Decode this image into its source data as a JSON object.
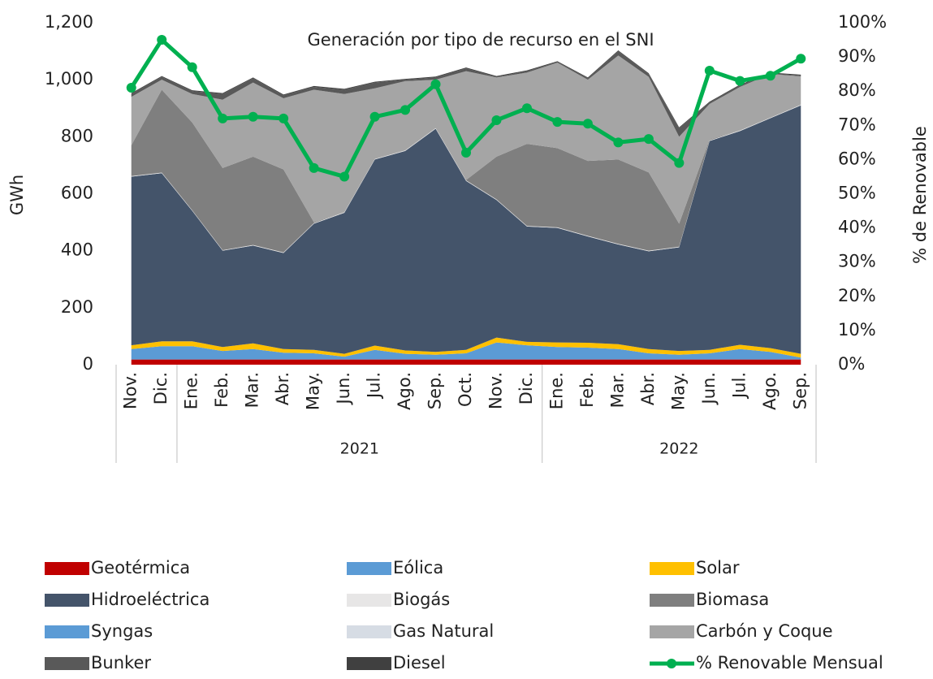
{
  "chart_data": {
    "type": "stacked_area_line",
    "title": "Generación por tipo de recurso en el  SNI",
    "y_label": "GWh",
    "y2_label": "% de Renovable",
    "categories": [
      "Nov.",
      "Dic.",
      "Ene.",
      "Feb.",
      "Mar.",
      "Abr.",
      "May.",
      "Jun.",
      "Jul.",
      "Ago.",
      "Sep.",
      "Oct.",
      "Nov.",
      "Dic.",
      "Ene.",
      "Feb.",
      "Mar.",
      "Abr.",
      "May.",
      "Jun.",
      "Jul.",
      "Ago.",
      "Sep."
    ],
    "years": [
      null,
      null,
      "2021",
      "2021",
      "2021",
      "2021",
      "2021",
      "2021",
      "2021",
      "2021",
      "2021",
      "2021",
      "2021",
      "2021",
      "2022",
      "2022",
      "2022",
      "2022",
      "2022",
      "2022",
      "2022",
      "2022",
      "2022"
    ],
    "ylim": [
      0,
      1200
    ],
    "yticks": [
      0,
      200,
      400,
      600,
      800,
      {
        "value": 1000,
        "label": "1,000"
      },
      {
        "value": 1200,
        "label": "1,200"
      }
    ],
    "y2lim": [
      0,
      100
    ],
    "y2ticks": [
      {
        "value": 0,
        "label": "0%"
      },
      {
        "value": 10,
        "label": "10%"
      },
      {
        "value": 20,
        "label": "20%"
      },
      {
        "value": 30,
        "label": "30%"
      },
      {
        "value": 40,
        "label": "40%"
      },
      {
        "value": 50,
        "label": "50%"
      },
      {
        "value": 60,
        "label": "60%"
      },
      {
        "value": 70,
        "label": "70%"
      },
      {
        "value": 80,
        "label": "80%"
      },
      {
        "value": 90,
        "label": "90%"
      },
      {
        "value": 100,
        "label": "100%"
      }
    ],
    "series": [
      {
        "name": "Geotérmica",
        "color": "#c00000",
        "values": [
          18,
          18,
          18,
          18,
          18,
          18,
          18,
          18,
          18,
          18,
          18,
          18,
          18,
          18,
          18,
          18,
          18,
          18,
          18,
          18,
          18,
          18,
          18
        ]
      },
      {
        "name": "Eólica",
        "color": "#5b9bd5",
        "values": [
          37,
          47,
          47,
          30,
          37,
          24,
          22,
          10,
          34,
          20,
          17,
          22,
          60,
          50,
          44,
          42,
          37,
          22,
          17,
          22,
          37,
          27,
          7
        ]
      },
      {
        "name": "Solar",
        "color": "#ffc000",
        "values": [
          13,
          17,
          17,
          14,
          20,
          13,
          12,
          10,
          15,
          12,
          10,
          12,
          17,
          12,
          16,
          17,
          17,
          15,
          13,
          12,
          15,
          13,
          13
        ]
      },
      {
        "name": "Hidroeléctrica",
        "color": "#44546a",
        "values": [
          592,
          590,
          458,
          338,
          343,
          337,
          443,
          495,
          653,
          700,
          783,
          593,
          483,
          405,
          402,
          373,
          350,
          343,
          364,
          733,
          750,
          807,
          872
        ]
      },
      {
        "name": "Biogás",
        "color": "#e7e6e6",
        "values": [
          2,
          2,
          2,
          2,
          2,
          2,
          2,
          2,
          2,
          2,
          2,
          2,
          2,
          2,
          2,
          2,
          2,
          2,
          2,
          2,
          2,
          2,
          2
        ]
      },
      {
        "name": "Biomasa",
        "color": "#7f7f7f",
        "values": [
          108,
          291,
          308,
          288,
          310,
          291,
          3,
          0,
          0,
          0,
          0,
          1,
          150,
          288,
          278,
          263,
          296,
          275,
          81,
          3,
          0,
          0,
          0
        ]
      },
      {
        "name": "Syngas",
        "color": "#5b9bd5",
        "values": [
          0,
          0,
          0,
          0,
          0,
          0,
          0,
          0,
          0,
          0,
          0,
          0,
          0,
          0,
          0,
          0,
          0,
          0,
          0,
          0,
          0,
          0,
          0
        ]
      },
      {
        "name": "Gas Natural",
        "color": "#d6dce4",
        "values": [
          0,
          0,
          0,
          0,
          0,
          0,
          0,
          0,
          0,
          0,
          0,
          0,
          0,
          0,
          0,
          0,
          0,
          0,
          0,
          0,
          0,
          0,
          0
        ]
      },
      {
        "name": "Carbón y Coque",
        "color": "#a5a5a5",
        "values": [
          170,
          35,
          100,
          240,
          260,
          250,
          465,
          415,
          248,
          243,
          170,
          382,
          278,
          250,
          300,
          285,
          365,
          335,
          305,
          125,
          153,
          153,
          100
        ]
      },
      {
        "name": "Bunker",
        "color": "#595959",
        "values": [
          10,
          10,
          10,
          20,
          15,
          10,
          10,
          15,
          20,
          5,
          8,
          10,
          2,
          5,
          2,
          5,
          15,
          10,
          30,
          5,
          5,
          2,
          3
        ]
      },
      {
        "name": "Diesel",
        "color": "#404040",
        "values": [
          3,
          3,
          3,
          3,
          3,
          3,
          3,
          3,
          3,
          3,
          3,
          3,
          3,
          3,
          3,
          3,
          3,
          3,
          3,
          3,
          3,
          3,
          3
        ]
      },
      {
        "name": "% Renovable Mensual",
        "color": "#00b050",
        "axis": "y2",
        "values": [
          81,
          95,
          87,
          72,
          72.5,
          72,
          57.5,
          55,
          72.5,
          74.5,
          82,
          62,
          71.5,
          75,
          71,
          70.5,
          65,
          66,
          59,
          86,
          83,
          84.5,
          89.5
        ]
      }
    ]
  }
}
